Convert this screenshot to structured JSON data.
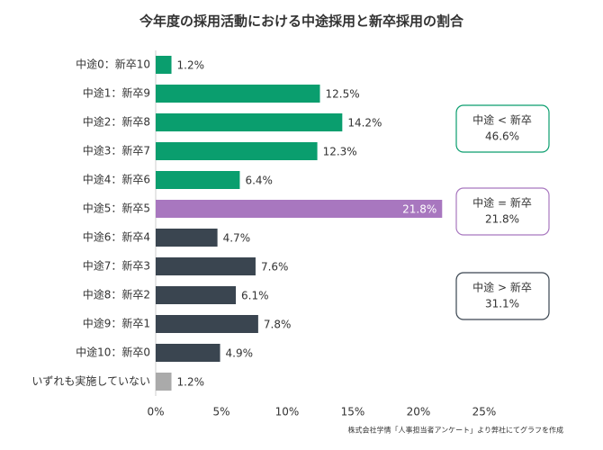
{
  "chart_data": {
    "type": "bar",
    "orientation": "horizontal",
    "title": "今年度の採用活動における中途採用と新卒採用の割合",
    "categories": [
      "中途0：新卒10",
      "中途1：新卒9",
      "中途2：新卒8",
      "中途3：新卒7",
      "中途4：新卒6",
      "中途5：新卒5",
      "中途6：新卒4",
      "中途7：新卒3",
      "中途8：新卒2",
      "中途9：新卒1",
      "中途10：新卒0",
      "いずれも実施していない"
    ],
    "values": [
      1.2,
      12.5,
      14.2,
      12.3,
      6.4,
      21.8,
      4.7,
      7.6,
      6.1,
      7.8,
      4.9,
      1.2
    ],
    "value_labels": [
      "1.2%",
      "12.5%",
      "14.2%",
      "12.3%",
      "6.4%",
      "21.8%",
      "4.7%",
      "7.6%",
      "6.1%",
      "7.8%",
      "4.9%",
      "1.2%"
    ],
    "colors": [
      "#0a9e6e",
      "#0a9e6e",
      "#0a9e6e",
      "#0a9e6e",
      "#0a9e6e",
      "#a877bf",
      "#3a4550",
      "#3a4550",
      "#3a4550",
      "#3a4550",
      "#3a4550",
      "#aaaaaa"
    ],
    "xlim": [
      0,
      25
    ],
    "xticks": [
      {
        "value": 0,
        "label": "0%"
      },
      {
        "value": 5,
        "label": "5%"
      },
      {
        "value": 10,
        "label": "10%"
      },
      {
        "value": 15,
        "label": "15%"
      },
      {
        "value": 20,
        "label": "20%"
      },
      {
        "value": 25,
        "label": "25%"
      }
    ],
    "grid": false,
    "annotations": [
      {
        "text": "中途 < 新卒",
        "value": 46.6,
        "value_label": "46.6%",
        "color": "#0a9e6e"
      },
      {
        "text": "中途 = 新卒",
        "value": 21.8,
        "value_label": "21.8%",
        "color": "#a877bf"
      },
      {
        "text": "中途 > 新卒",
        "value": 31.1,
        "value_label": "31.1%",
        "color": "#3a4550"
      }
    ],
    "source": "株式会社学情「人事担当者アンケート」より弊社にてグラフを作成"
  }
}
